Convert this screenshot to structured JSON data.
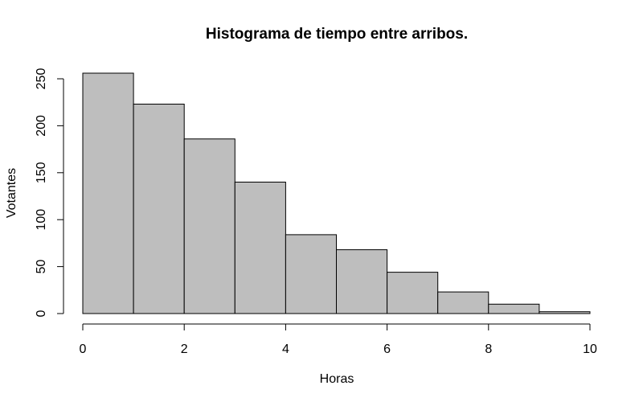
{
  "chart_data": {
    "type": "bar",
    "title": "Histograma de tiempo entre arribos.",
    "xlabel": "Horas",
    "ylabel": "Votantes",
    "bins": [
      {
        "from": 0,
        "to": 1,
        "count": 256
      },
      {
        "from": 1,
        "to": 2,
        "count": 223
      },
      {
        "from": 2,
        "to": 3,
        "count": 186
      },
      {
        "from": 3,
        "to": 4,
        "count": 140
      },
      {
        "from": 4,
        "to": 5,
        "count": 84
      },
      {
        "from": 5,
        "to": 6,
        "count": 68
      },
      {
        "from": 6,
        "to": 7,
        "count": 44
      },
      {
        "from": 7,
        "to": 8,
        "count": 23
      },
      {
        "from": 8,
        "to": 9,
        "count": 10
      },
      {
        "from": 9,
        "to": 10,
        "count": 2
      }
    ],
    "xlim": [
      0,
      10
    ],
    "ylim": [
      0,
      256
    ],
    "x_ticks": [
      0,
      2,
      4,
      6,
      8,
      10
    ],
    "y_ticks": [
      0,
      50,
      100,
      150,
      200,
      250
    ],
    "bar_color": "#bebebe",
    "grid": false,
    "legend": "none"
  }
}
